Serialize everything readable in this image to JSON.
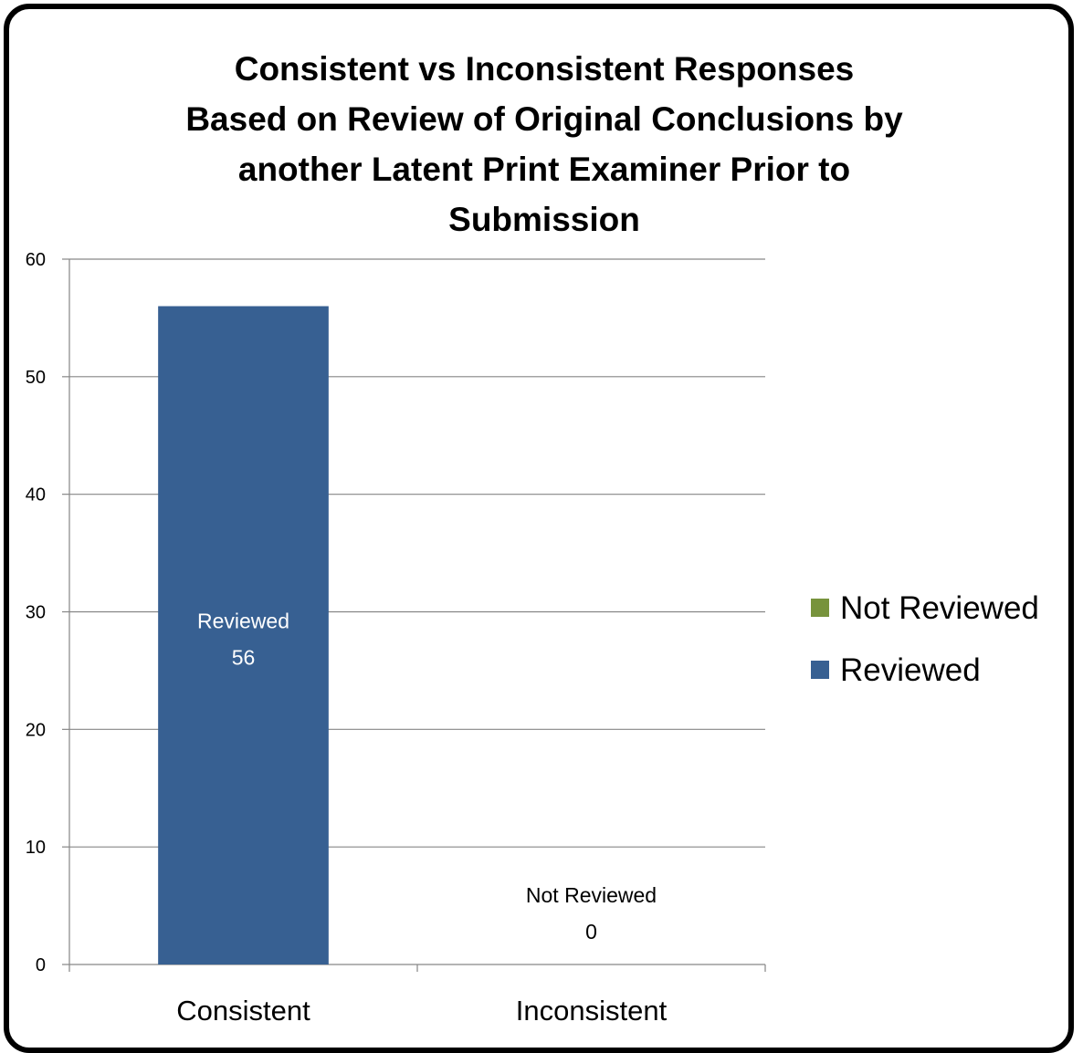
{
  "chart_data": {
    "type": "bar",
    "stacked": true,
    "title_lines": [
      "Consistent vs Inconsistent Responses",
      "Based on Review of Original Conclusions by",
      "another Latent Print Examiner Prior to",
      "Submission"
    ],
    "categories": [
      "Consistent",
      "Inconsistent"
    ],
    "series": [
      {
        "name": "Reviewed",
        "values": [
          56,
          0
        ],
        "color": "#376092"
      },
      {
        "name": "Not Reviewed",
        "values": [
          0,
          0
        ],
        "color": "#77933C"
      }
    ],
    "data_labels": [
      {
        "category": "Consistent",
        "series": "Reviewed",
        "value": 56
      },
      {
        "category": "Inconsistent",
        "series": "Not Reviewed",
        "value": 0
      }
    ],
    "ylim": [
      0,
      60
    ],
    "yticks": [
      0,
      10,
      20,
      30,
      40,
      50,
      60
    ],
    "grid": true,
    "legend_position": "right",
    "legend_order": [
      "Not Reviewed",
      "Reviewed"
    ],
    "xlabel": "",
    "ylabel": ""
  }
}
